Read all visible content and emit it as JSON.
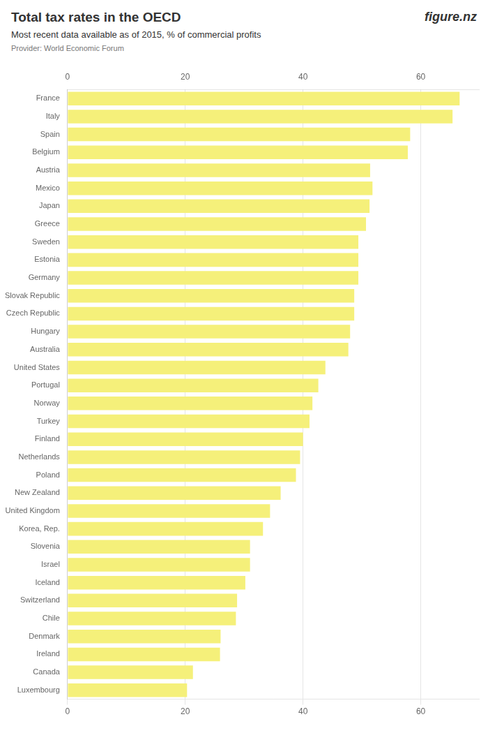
{
  "chart_data": {
    "type": "bar",
    "title": "Total tax rates in the OECD",
    "subtitle": "Most recent data available as of 2015, % of commercial profits",
    "annotations": [
      "Provider: World Economic Forum",
      "figure.nz"
    ],
    "orientation": "horizontal",
    "categories": [
      "France",
      "Italy",
      "Spain",
      "Belgium",
      "Austria",
      "Mexico",
      "Japan",
      "Greece",
      "Sweden",
      "Estonia",
      "Germany",
      "Slovak Republic",
      "Czech Republic",
      "Hungary",
      "Australia",
      "United States",
      "Portugal",
      "Norway",
      "Turkey",
      "Finland",
      "Netherlands",
      "Poland",
      "New Zealand",
      "United Kingdom",
      "Korea, Rep.",
      "Slovenia",
      "Israel",
      "Iceland",
      "Switzerland",
      "Chile",
      "Denmark",
      "Ireland",
      "Canada",
      "Luxembourg"
    ],
    "values": [
      66.6,
      65.4,
      58.2,
      57.8,
      51.4,
      51.8,
      51.3,
      50.7,
      49.4,
      49.4,
      49.4,
      48.7,
      48.7,
      48.0,
      47.7,
      43.8,
      42.6,
      41.6,
      41.1,
      40.0,
      39.5,
      38.8,
      36.2,
      34.4,
      33.2,
      31.0,
      31.0,
      30.2,
      28.8,
      28.6,
      26.0,
      25.9,
      21.3,
      20.3
    ],
    "color": "#f5f07a",
    "xlim": [
      0,
      70
    ],
    "xticks": [
      0,
      20,
      40,
      60
    ],
    "grid": true
  }
}
